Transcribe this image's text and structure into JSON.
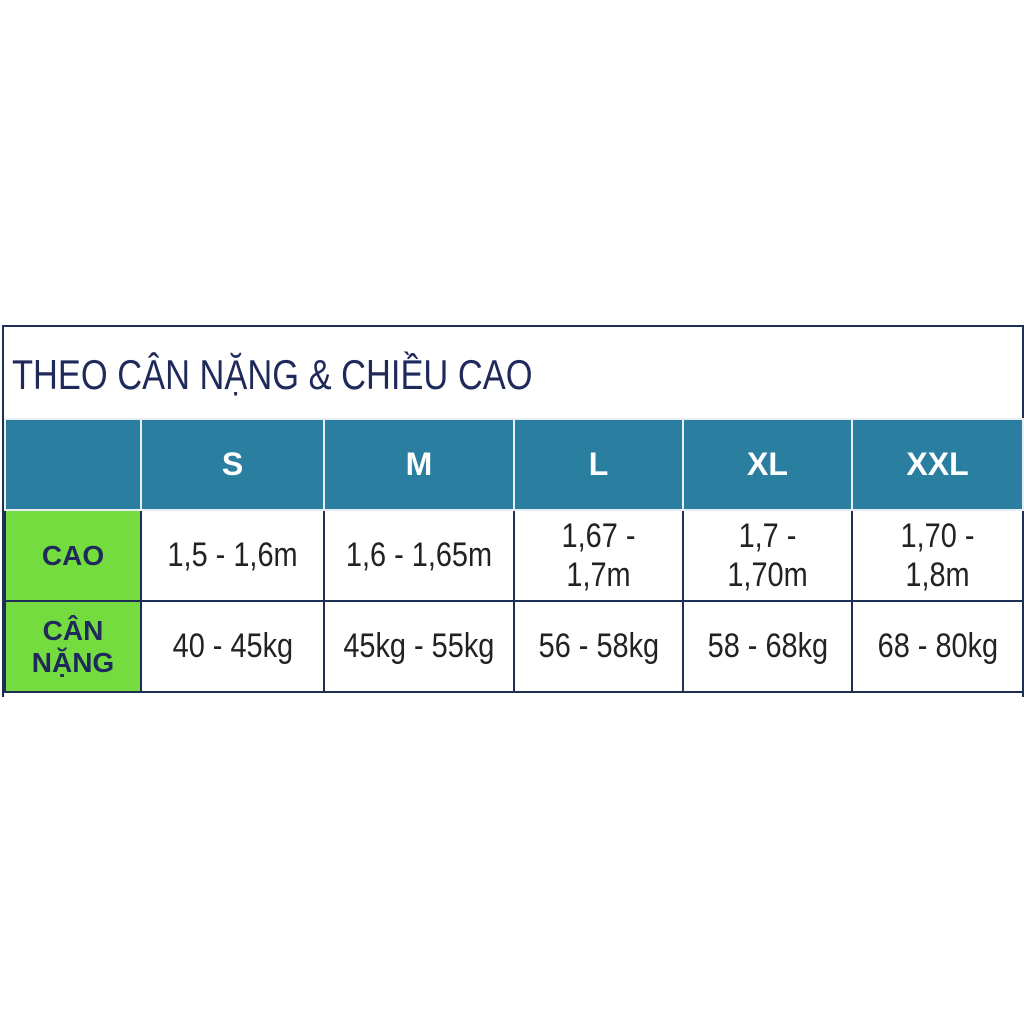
{
  "header": {
    "title": "THEO CÂN NẶNG & CHIỀU CAO"
  },
  "table": {
    "columns": [
      "S",
      "M",
      "L",
      "XL",
      "XXL"
    ],
    "rows": [
      {
        "label": "CAO",
        "values": [
          "1,5 - 1,6m",
          "1,6 - 1,65m",
          "1,67 - 1,7m",
          "1,7 - 1,70m",
          "1,70 - 1,8m"
        ]
      },
      {
        "label": "CÂN NẶNG",
        "values": [
          "40 - 45kg",
          "45kg - 55kg",
          "56 - 58kg",
          "58 - 68kg",
          "68 - 80kg"
        ]
      }
    ]
  }
}
